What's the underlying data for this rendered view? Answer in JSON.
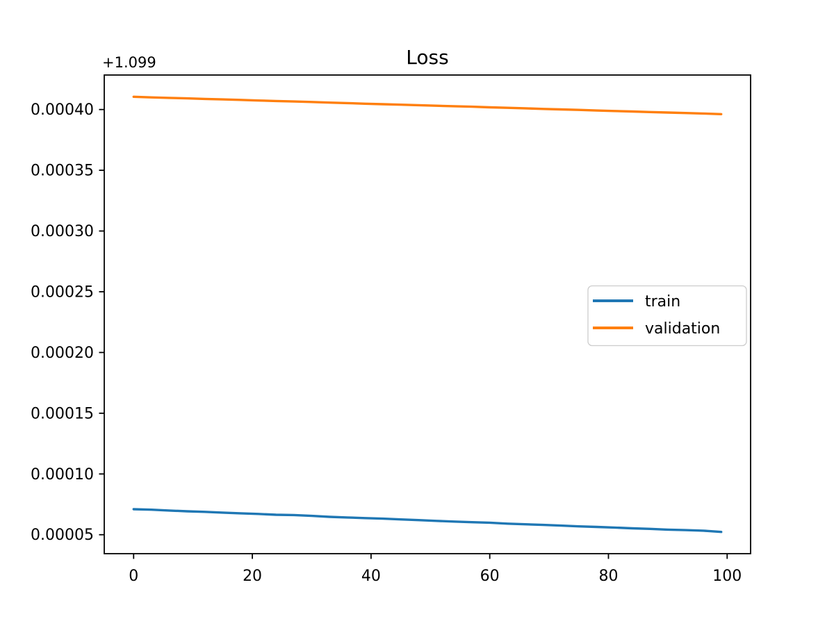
{
  "chart_data": {
    "type": "line",
    "title": "Loss",
    "xlabel": "",
    "ylabel": "",
    "y_offset_text": "+1.099",
    "y_offset_value": 1.099,
    "grid": false,
    "legend_position": "center right",
    "xlim": [
      -4.95,
      103.95
    ],
    "ylim": [
      3.44e-05,
      0.0004284
    ],
    "x_ticks": [
      0,
      20,
      40,
      60,
      80,
      100
    ],
    "x_tick_labels": [
      "0",
      "20",
      "40",
      "60",
      "80",
      "100"
    ],
    "y_ticks": [
      5e-05,
      0.0001,
      0.00015,
      0.0002,
      0.00025,
      0.0003,
      0.00035,
      0.0004
    ],
    "y_tick_labels": [
      "0.00005",
      "0.00010",
      "0.00015",
      "0.00020",
      "0.00025",
      "0.00030",
      "0.00035",
      "0.00040"
    ],
    "x": [
      0,
      3,
      6,
      9,
      12,
      15,
      18,
      21,
      24,
      27,
      30,
      33,
      36,
      39,
      42,
      45,
      48,
      51,
      54,
      57,
      60,
      63,
      66,
      69,
      72,
      75,
      78,
      81,
      84,
      87,
      90,
      93,
      96,
      99
    ],
    "series": [
      {
        "name": "train",
        "color": "#1f77b4",
        "values": [
          7.1e-05,
          7.06e-05,
          6.99e-05,
          6.93e-05,
          6.88e-05,
          6.82e-05,
          6.76e-05,
          6.71e-05,
          6.64e-05,
          6.62e-05,
          6.55e-05,
          6.47e-05,
          6.42e-05,
          6.37e-05,
          6.32e-05,
          6.26e-05,
          6.2e-05,
          6.14e-05,
          6.08e-05,
          6.03e-05,
          5.99e-05,
          5.91e-05,
          5.86e-05,
          5.81e-05,
          5.75e-05,
          5.69e-05,
          5.64e-05,
          5.59e-05,
          5.53e-05,
          5.48e-05,
          5.42e-05,
          5.38e-05,
          5.33e-05,
          5.23e-05
        ]
      },
      {
        "name": "validation",
        "color": "#ff7f0e",
        "values": [
          0.0004105,
          0.00041,
          0.0004096,
          0.0004092,
          0.0004087,
          0.0004083,
          0.0004079,
          0.0004074,
          0.000407,
          0.0004066,
          0.0004062,
          0.0004057,
          0.0004053,
          0.0004048,
          0.0004044,
          0.000404,
          0.0004036,
          0.0004031,
          0.0004027,
          0.0004023,
          0.0004018,
          0.0004014,
          0.000401,
          0.0004005,
          0.0004001,
          0.0003997,
          0.0003992,
          0.0003988,
          0.0003984,
          0.0003979,
          0.0003975,
          0.0003971,
          0.0003967,
          0.0003962
        ]
      }
    ]
  }
}
